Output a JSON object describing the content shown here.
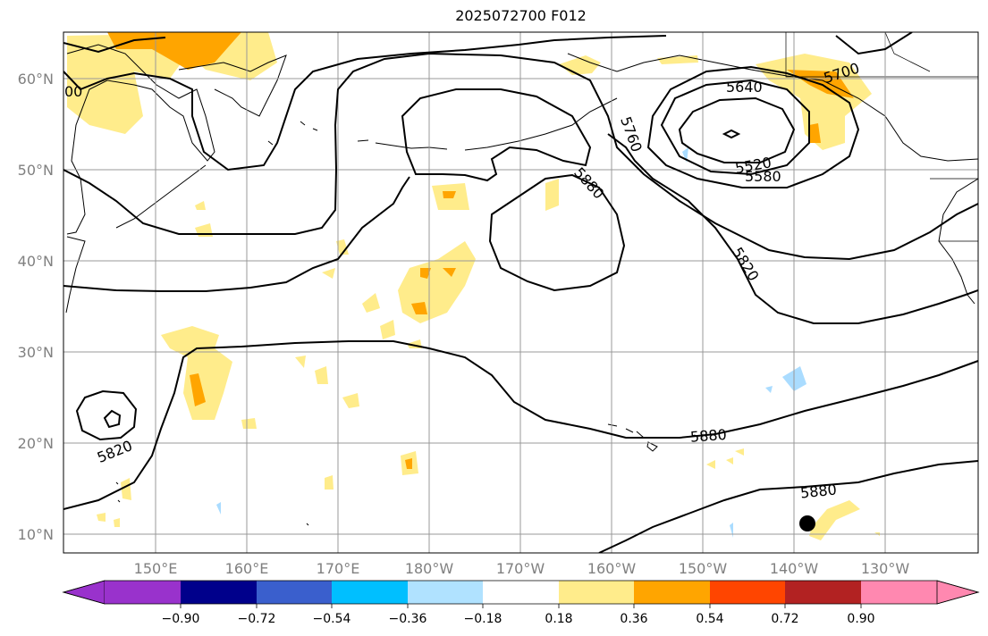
{
  "title": "2025072700 F012",
  "map": {
    "lat_labels": [
      "60°N",
      "50°N",
      "40°N",
      "30°N",
      "20°N",
      "10°N"
    ],
    "lon_labels": [
      "150°E",
      "160°E",
      "170°E",
      "180°W",
      "170°W",
      "160°W",
      "150°W",
      "140°W",
      "130°W"
    ],
    "contour_labels": [
      "5700",
      "5640",
      "5520",
      "5580",
      "5760",
      "5880",
      "5820",
      "5880",
      "5880",
      "5820",
      "00"
    ],
    "colors": {
      "contour": "#000000",
      "coast": "#000000",
      "grid": "#999999",
      "shade_low": "#ffec8b",
      "shade_mid": "#ffa500",
      "shade_neg": "#aadcff"
    }
  },
  "colorbar": {
    "ticks": [
      "−0.90",
      "−0.72",
      "−0.54",
      "−0.36",
      "−0.18",
      "0.18",
      "0.36",
      "0.54",
      "0.72",
      "0.90"
    ],
    "colors": [
      "#9932cc",
      "#00008b",
      "#3a5fcd",
      "#00bfff",
      "#b0e2ff",
      "#ffffff",
      "#ffec8b",
      "#ffa500",
      "#ff4500",
      "#b22222",
      "#ff88b0",
      "#ff88b0"
    ]
  }
}
